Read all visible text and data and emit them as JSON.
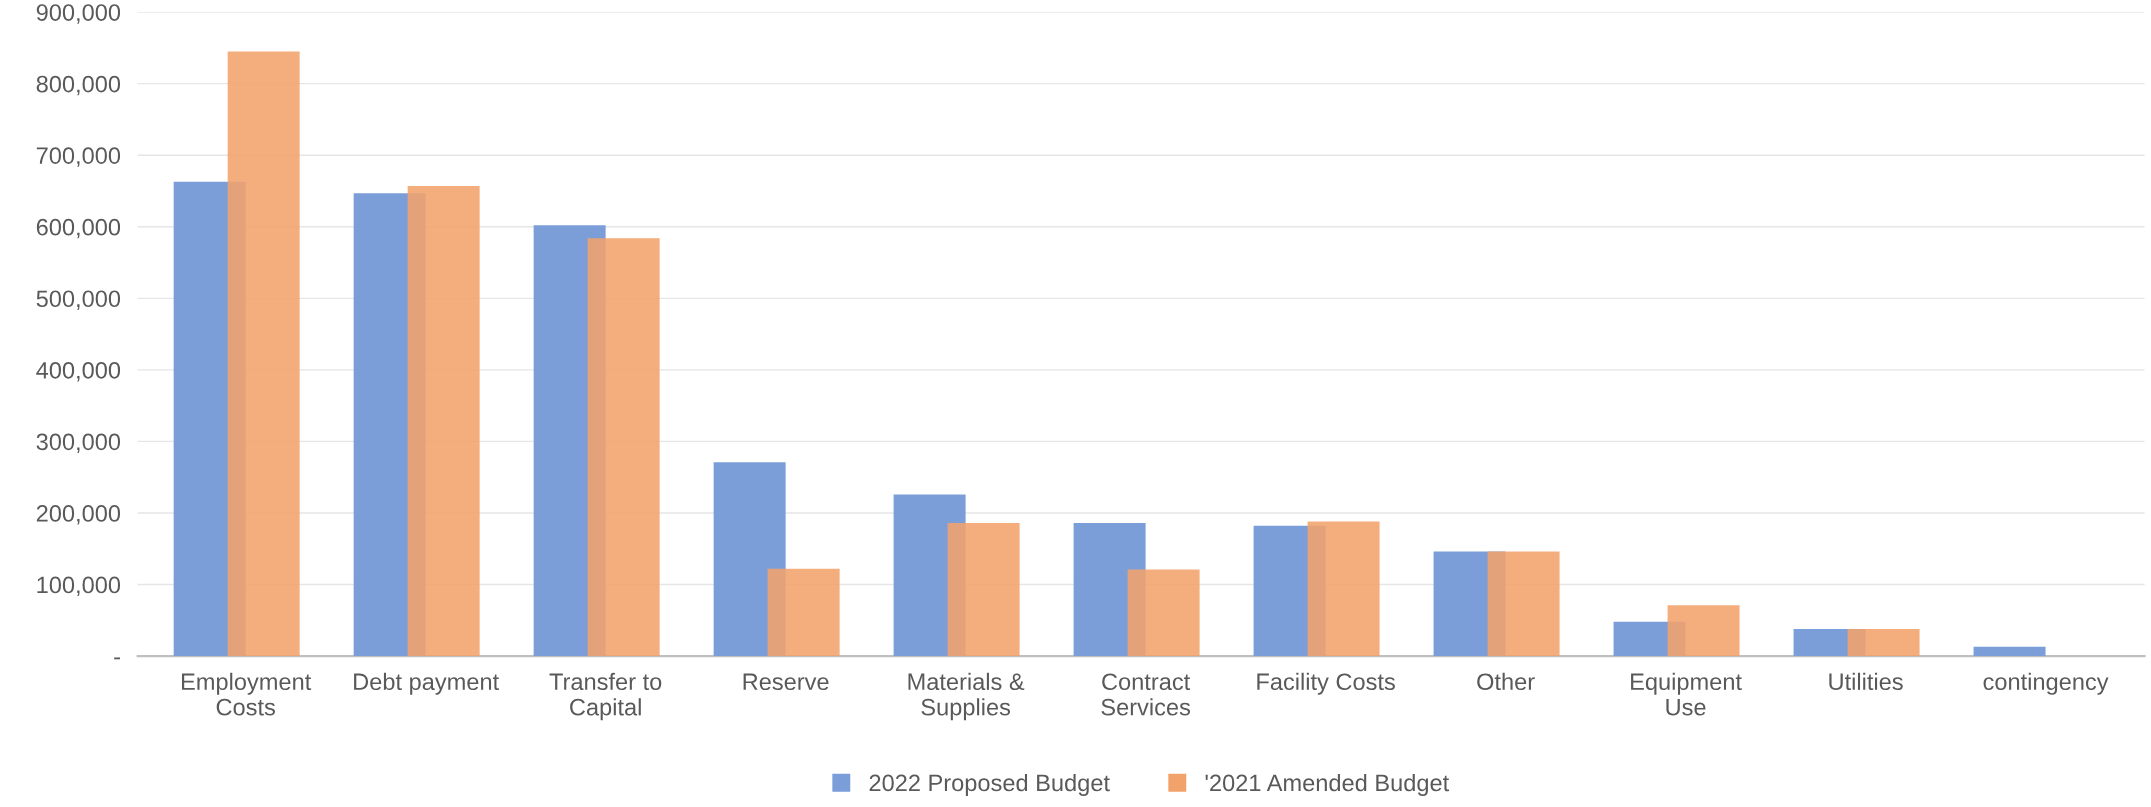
{
  "chart_data": {
    "type": "bar",
    "categories": [
      "Employment\nCosts",
      "Debt payment",
      "Transfer to\nCapital",
      "Reserve",
      "Materials &\nSupplies",
      "Contract\nServices",
      "Facility Costs",
      "Other",
      "Equipment\nUse",
      "Utilities",
      "contingency"
    ],
    "series": [
      {
        "name": "2022 Proposed Budget",
        "color": "#7b9ed9",
        "values": [
          663000,
          647000,
          602000,
          271000,
          226000,
          186000,
          182000,
          146000,
          48000,
          38000,
          13000
        ]
      },
      {
        "name": "'2021 Amended Budget",
        "color": "#f2a36c",
        "values": [
          845000,
          657000,
          584000,
          122000,
          186000,
          121000,
          188000,
          146000,
          71000,
          38000,
          null
        ]
      }
    ],
    "ylim": [
      0,
      900000
    ],
    "yticks": [
      {
        "value": 0,
        "label": "-"
      },
      {
        "value": 100000,
        "label": "100,000"
      },
      {
        "value": 200000,
        "label": "200,000"
      },
      {
        "value": 300000,
        "label": "300,000"
      },
      {
        "value": 400000,
        "label": "400,000"
      },
      {
        "value": 500000,
        "label": "500,000"
      },
      {
        "value": 600000,
        "label": "600,000"
      },
      {
        "value": 700000,
        "label": "700,000"
      },
      {
        "value": 800000,
        "label": "800,000"
      },
      {
        "value": 900000,
        "label": "900,000"
      }
    ],
    "grid": "y",
    "legend": "bottom"
  }
}
